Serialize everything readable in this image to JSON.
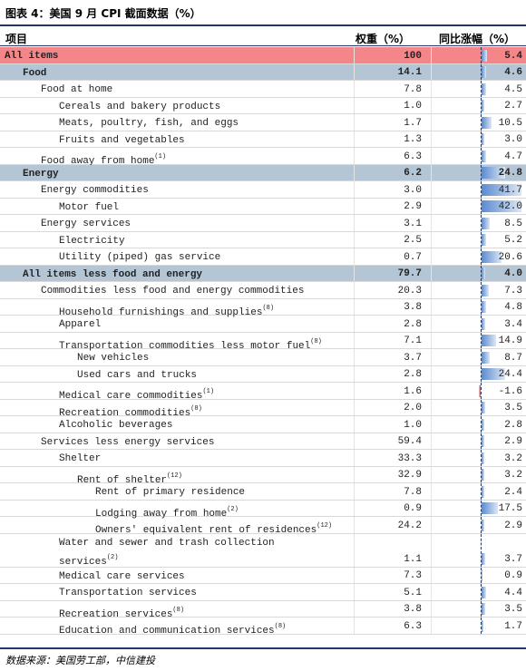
{
  "title": "图表 4：美国 9 月 CPI 截面数据（%）",
  "header": {
    "item": "项目",
    "weight": "权重（%）",
    "yoy": "同比涨幅（%）"
  },
  "rows": [
    {
      "label": "All items",
      "weight": "100",
      "yoy": "5.4"
    },
    {
      "label": "Food",
      "weight": "14.1",
      "yoy": "4.6"
    },
    {
      "label": "Food at home",
      "weight": "7.8",
      "yoy": "4.5"
    },
    {
      "label": "Cereals and bakery products",
      "weight": "1.0",
      "yoy": "2.7"
    },
    {
      "label": "Meats, poultry, fish, and eggs",
      "weight": "1.7",
      "yoy": "10.5"
    },
    {
      "label": "Fruits and vegetables",
      "weight": "1.3",
      "yoy": "3.0"
    },
    {
      "label": "Food away from home",
      "note": "(1)",
      "weight": "6.3",
      "yoy": "4.7"
    },
    {
      "label": "Energy",
      "weight": "6.2",
      "yoy": "24.8"
    },
    {
      "label": "Energy commodities",
      "weight": "3.0",
      "yoy": "41.7"
    },
    {
      "label": "Motor fuel",
      "weight": "2.9",
      "yoy": "42.0"
    },
    {
      "label": "Energy services",
      "weight": "3.1",
      "yoy": "8.5"
    },
    {
      "label": "Electricity",
      "weight": "2.5",
      "yoy": "5.2"
    },
    {
      "label": "Utility (piped) gas service",
      "weight": "0.7",
      "yoy": "20.6"
    },
    {
      "label": "All items less food and energy",
      "weight": "79.7",
      "yoy": "4.0"
    },
    {
      "label": "Commodities less food and energy commodities",
      "weight": "20.3",
      "yoy": "7.3"
    },
    {
      "label": "Household furnishings and supplies",
      "note": "(8)",
      "weight": "3.8",
      "yoy": "4.8"
    },
    {
      "label": "Apparel",
      "weight": "2.8",
      "yoy": "3.4"
    },
    {
      "label": "Transportation commodities less motor fuel",
      "note": "(8)",
      "weight": "7.1",
      "yoy": "14.9"
    },
    {
      "label": "New vehicles",
      "weight": "3.7",
      "yoy": "8.7"
    },
    {
      "label": "Used cars and trucks",
      "weight": "2.8",
      "yoy": "24.4"
    },
    {
      "label": "Medical care commodities",
      "note": "(1)",
      "weight": "1.6",
      "yoy": "-1.6"
    },
    {
      "label": "Recreation commodities",
      "note": "(8)",
      "weight": "2.0",
      "yoy": "3.5"
    },
    {
      "label": "Alcoholic beverages",
      "weight": "1.0",
      "yoy": "2.8"
    },
    {
      "label": "Services less energy services",
      "weight": "59.4",
      "yoy": "2.9"
    },
    {
      "label": "Shelter",
      "weight": "33.3",
      "yoy": "3.2"
    },
    {
      "label": "Rent of shelter",
      "note": "(12)",
      "weight": "32.9",
      "yoy": "3.2"
    },
    {
      "label": "Rent of primary residence",
      "weight": "7.8",
      "yoy": "2.4"
    },
    {
      "label": "Lodging away from home",
      "note": "(2)",
      "weight": "0.9",
      "yoy": "17.5"
    },
    {
      "label": "Owners' equivalent rent of residences",
      "note": "(12)",
      "weight": "24.2",
      "yoy": "2.9"
    },
    {
      "label": "Water and sewer and trash collection services",
      "note": "(2)",
      "weight": "1.1",
      "yoy": "3.7"
    },
    {
      "label": "Medical care services",
      "weight": "7.3",
      "yoy": "0.9"
    },
    {
      "label": "Transportation services",
      "weight": "5.1",
      "yoy": "4.4"
    },
    {
      "label": "Recreation services",
      "note": "(8)",
      "weight": "3.8",
      "yoy": "3.5"
    },
    {
      "label": "Education and communication services",
      "note": "(8)",
      "weight": "6.3",
      "yoy": "1.7"
    }
  ],
  "source": "数据来源：美国劳工部，中信建投"
}
